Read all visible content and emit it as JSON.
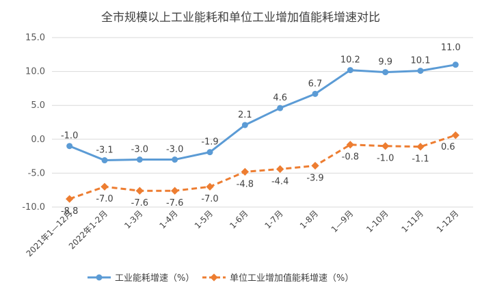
{
  "chart_data": {
    "type": "line",
    "title": "全市规模以上工业能耗和单位工业增加值能耗增速对比",
    "categories": [
      "2021年1—12月",
      "2022年1-2月",
      "1-3月",
      "1-4月",
      "1-5月",
      "1-6月",
      "1-7月",
      "1-8月",
      "1—9月",
      "1-10月",
      "1-11月",
      "1-12月"
    ],
    "series": [
      {
        "name": "工业能耗增速（%）",
        "values": [
          -1.0,
          -3.1,
          -3.0,
          -3.0,
          -1.9,
          2.1,
          4.6,
          6.7,
          10.2,
          9.9,
          10.1,
          11.0
        ],
        "labels": [
          "-1.0",
          "-3.1",
          "-3.0",
          "-3.0",
          "-1.9",
          "2.1",
          "4.6",
          "6.7",
          "10.2",
          "9.9",
          "10.1",
          "11.0"
        ],
        "color": "#5b9bd5",
        "style": "solid"
      },
      {
        "name": "单位工业增加值能耗增速（%）",
        "values": [
          -8.8,
          -7.0,
          -7.6,
          -7.6,
          -7.0,
          -4.8,
          -4.4,
          -3.9,
          -0.8,
          -1.0,
          -1.1,
          0.6
        ],
        "labels": [
          "-8.8",
          "-7.0",
          "-7.6",
          "-7.6",
          "-7.0",
          "-4.8",
          "-4.4",
          "-3.9",
          "-0.8",
          "-1.0",
          "-1.1",
          "0.6"
        ],
        "color": "#ed7d31",
        "style": "dashed"
      }
    ],
    "yticks": [
      "15.0",
      "10.0",
      "5.0",
      "0.0",
      "-5.0",
      "-10.0"
    ],
    "ylim": [
      -10,
      15
    ],
    "xlabel": "",
    "ylabel": "",
    "grid": "horizontal",
    "legend": "bottom"
  }
}
